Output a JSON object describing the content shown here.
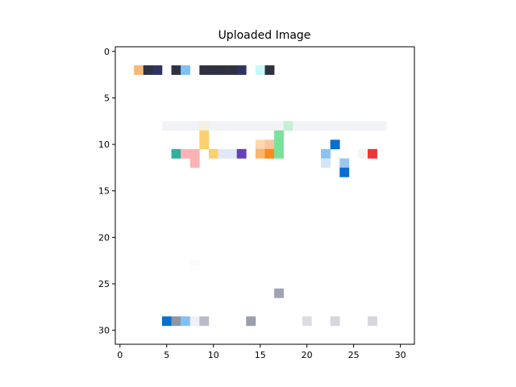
{
  "chart_data": {
    "type": "heatmap",
    "title": "Uploaded Image",
    "xlabel": "",
    "ylabel": "",
    "width": 32,
    "height": 32,
    "xlim": [
      -0.5,
      31.5
    ],
    "ylim": [
      31.5,
      -0.5
    ],
    "y_axis_inverted": true,
    "grid": false,
    "xticks": [
      0,
      5,
      10,
      15,
      20,
      25,
      30
    ],
    "yticks": [
      0,
      5,
      10,
      15,
      20,
      25,
      30
    ],
    "background": "#ffffff",
    "pixels": [
      {
        "col": 2,
        "row": 2,
        "color": "#f4b97a"
      },
      {
        "col": 3,
        "row": 2,
        "color": "#2f3140"
      },
      {
        "col": 4,
        "row": 2,
        "color": "#2e3366"
      },
      {
        "col": 6,
        "row": 2,
        "color": "#2f3140"
      },
      {
        "col": 7,
        "row": 2,
        "color": "#7fc1f7"
      },
      {
        "col": 9,
        "row": 2,
        "color": "#2f3140"
      },
      {
        "col": 10,
        "row": 2,
        "color": "#2f3140"
      },
      {
        "col": 11,
        "row": 2,
        "color": "#2f3140"
      },
      {
        "col": 12,
        "row": 2,
        "color": "#2f3140"
      },
      {
        "col": 13,
        "row": 2,
        "color": "#2e3366"
      },
      {
        "col": 15,
        "row": 2,
        "color": "#c9f7f7"
      },
      {
        "col": 16,
        "row": 2,
        "color": "#2f3140"
      },
      {
        "col": 5,
        "row": 8,
        "color": "#f1f3f6"
      },
      {
        "col": 6,
        "row": 8,
        "color": "#f1f3f6"
      },
      {
        "col": 7,
        "row": 8,
        "color": "#f1f3f6"
      },
      {
        "col": 8,
        "row": 8,
        "color": "#f1f3f6"
      },
      {
        "col": 9,
        "row": 8,
        "color": "#f8efe4"
      },
      {
        "col": 10,
        "row": 8,
        "color": "#f1f3f6"
      },
      {
        "col": 11,
        "row": 8,
        "color": "#f1f3f6"
      },
      {
        "col": 12,
        "row": 8,
        "color": "#f1f3f6"
      },
      {
        "col": 13,
        "row": 8,
        "color": "#f1f3f6"
      },
      {
        "col": 14,
        "row": 8,
        "color": "#f1f3f6"
      },
      {
        "col": 15,
        "row": 8,
        "color": "#f1f3f6"
      },
      {
        "col": 16,
        "row": 8,
        "color": "#f1f3f6"
      },
      {
        "col": 17,
        "row": 8,
        "color": "#f1f3f6"
      },
      {
        "col": 18,
        "row": 8,
        "color": "#c3f0d2"
      },
      {
        "col": 19,
        "row": 8,
        "color": "#f1f3f6"
      },
      {
        "col": 20,
        "row": 8,
        "color": "#f1f3f6"
      },
      {
        "col": 21,
        "row": 8,
        "color": "#f1f3f6"
      },
      {
        "col": 22,
        "row": 8,
        "color": "#f1f3f6"
      },
      {
        "col": 23,
        "row": 8,
        "color": "#f1f3f6"
      },
      {
        "col": 24,
        "row": 8,
        "color": "#f1f3f6"
      },
      {
        "col": 25,
        "row": 8,
        "color": "#f1f3f6"
      },
      {
        "col": 26,
        "row": 8,
        "color": "#f1f3f6"
      },
      {
        "col": 27,
        "row": 8,
        "color": "#f1f3f6"
      },
      {
        "col": 28,
        "row": 8,
        "color": "#f1f3f6"
      },
      {
        "col": 9,
        "row": 9,
        "color": "#fbd06e"
      },
      {
        "col": 17,
        "row": 9,
        "color": "#78e29a"
      },
      {
        "col": 9,
        "row": 10,
        "color": "#fbd06e"
      },
      {
        "col": 15,
        "row": 10,
        "color": "#fcd7b0"
      },
      {
        "col": 16,
        "row": 10,
        "color": "#fbc59c"
      },
      {
        "col": 17,
        "row": 10,
        "color": "#78e29a"
      },
      {
        "col": 23,
        "row": 10,
        "color": "#0a6ecf"
      },
      {
        "col": 6,
        "row": 11,
        "color": "#2fb1a0"
      },
      {
        "col": 7,
        "row": 11,
        "color": "#fdb2b6"
      },
      {
        "col": 8,
        "row": 11,
        "color": "#fdb2b6"
      },
      {
        "col": 10,
        "row": 11,
        "color": "#fbd06e"
      },
      {
        "col": 11,
        "row": 11,
        "color": "#dfe8f4"
      },
      {
        "col": 12,
        "row": 11,
        "color": "#dfe8f4"
      },
      {
        "col": 13,
        "row": 11,
        "color": "#6540b9"
      },
      {
        "col": 15,
        "row": 11,
        "color": "#f8b56e"
      },
      {
        "col": 16,
        "row": 11,
        "color": "#fd8a1c"
      },
      {
        "col": 17,
        "row": 11,
        "color": "#78e29a"
      },
      {
        "col": 22,
        "row": 11,
        "color": "#89c3f4"
      },
      {
        "col": 26,
        "row": 11,
        "color": "#f3f3f5"
      },
      {
        "col": 27,
        "row": 11,
        "color": "#ee3434"
      },
      {
        "col": 8,
        "row": 12,
        "color": "#fdb2b6"
      },
      {
        "col": 22,
        "row": 12,
        "color": "#d2e6f7"
      },
      {
        "col": 24,
        "row": 12,
        "color": "#9cc6ec"
      },
      {
        "col": 24,
        "row": 13,
        "color": "#0a6ecf"
      },
      {
        "col": 8,
        "row": 23,
        "color": "#fbfbfc"
      },
      {
        "col": 17,
        "row": 26,
        "color": "#a0a3b1"
      },
      {
        "col": 5,
        "row": 29,
        "color": "#0a6ecf"
      },
      {
        "col": 6,
        "row": 29,
        "color": "#8e95a5"
      },
      {
        "col": 7,
        "row": 29,
        "color": "#7fc1f7"
      },
      {
        "col": 8,
        "row": 29,
        "color": "#eef1f5"
      },
      {
        "col": 9,
        "row": 29,
        "color": "#b8bbc8"
      },
      {
        "col": 14,
        "row": 29,
        "color": "#9b9eab"
      },
      {
        "col": 20,
        "row": 29,
        "color": "#dcdde3"
      },
      {
        "col": 23,
        "row": 29,
        "color": "#d6d7de"
      },
      {
        "col": 27,
        "row": 29,
        "color": "#d6d7de"
      }
    ]
  }
}
